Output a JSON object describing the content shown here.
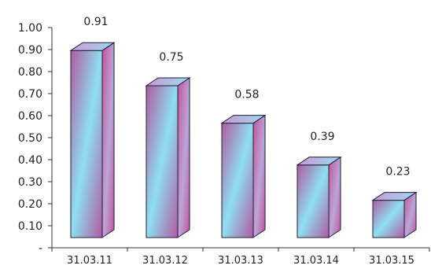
{
  "chart_data": {
    "type": "bar",
    "categories": [
      "31.03.11",
      "31.03.12",
      "31.03.13",
      "31.03.14",
      "31.03.15"
    ],
    "values": [
      0.91,
      0.75,
      0.58,
      0.39,
      0.23
    ],
    "data_labels": [
      "0.91",
      "0.75",
      "0.58",
      "0.39",
      "0.23"
    ],
    "ylim": [
      0,
      1.0
    ],
    "yticks": [
      0,
      0.1,
      0.2,
      0.3,
      0.4,
      0.5,
      0.6,
      0.7,
      0.8,
      0.9,
      1.0
    ],
    "ytick_labels": [
      "-",
      "0.10",
      "0.20",
      "0.30",
      "0.40",
      "0.50",
      "0.60",
      "0.70",
      "0.80",
      "0.90",
      "1.00"
    ],
    "title": "",
    "xlabel": "",
    "ylabel": "",
    "grid": false,
    "style": "3d-column",
    "colors": {
      "front_a": "#b05aa0",
      "front_b": "#8ee0f3",
      "side_a": "#c8509a",
      "side_b": "#b9a6d8",
      "top": "#9fd8f0",
      "edge": "#1e1e3a",
      "axis": "#333333"
    }
  }
}
